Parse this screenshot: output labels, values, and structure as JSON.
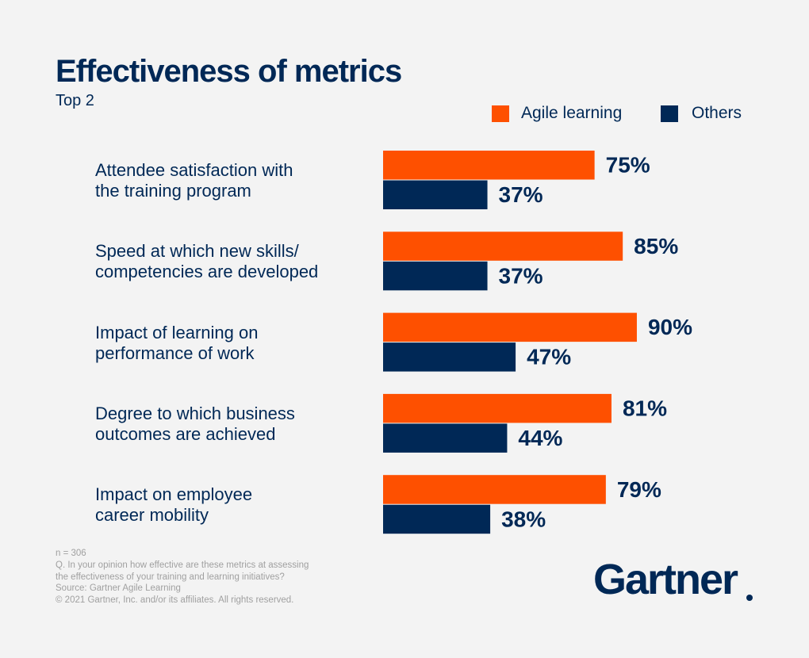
{
  "chart_data": {
    "type": "hbar",
    "title": "Effectiveness of metrics",
    "subtitle": "Top 2",
    "categories": [
      "Attendee satisfaction with\nthe training program",
      "Speed at which new skills/\ncompetencies are developed",
      "Impact of learning on\nperformance of work",
      "Degree to which business\noutcomes are achieved",
      "Impact on employee\ncareer mobility"
    ],
    "series": [
      {
        "name": "Agile learning",
        "color": "#fe5000",
        "values": [
          75,
          85,
          90,
          81,
          79
        ],
        "value_labels": [
          "75%",
          "85%",
          "90%",
          "81%",
          "79%"
        ]
      },
      {
        "name": "Others",
        "color": "#002856",
        "values": [
          37,
          37,
          47,
          44,
          38
        ],
        "value_labels": [
          "37%",
          "37%",
          "47%",
          "44%",
          "38%"
        ]
      }
    ],
    "xlim": [
      0,
      100
    ],
    "legend": "top-right"
  },
  "footnotes": [
    "n = 306",
    "Q. In your opinion how effective are these metrics at assessing\nthe effectiveness of your training and learning initiatives?",
    "Source: Gartner Agile Learning",
    "© 2021 Gartner, Inc. and/or its affiliates. All rights reserved."
  ],
  "logo": "Gartner"
}
